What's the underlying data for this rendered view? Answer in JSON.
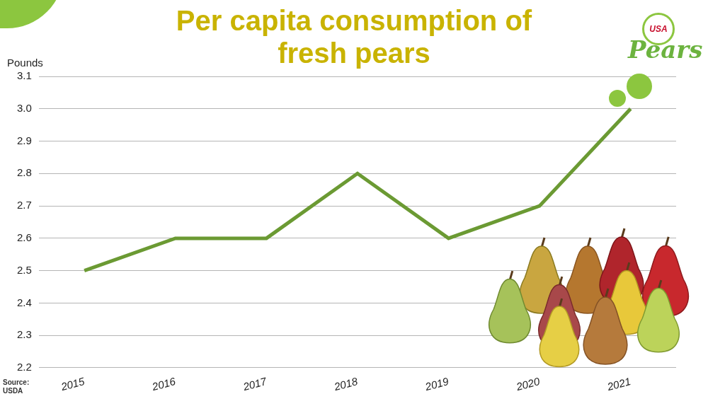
{
  "chart_data": {
    "type": "line",
    "title": "Per capita consumption of fresh pears",
    "y_label": "Pounds",
    "source": "Source: USDA",
    "logo": {
      "badge": "USA",
      "text": "Pears"
    },
    "categories": [
      "2015",
      "2016",
      "2017",
      "2018",
      "2019",
      "2020",
      "2021"
    ],
    "values": [
      2.5,
      2.6,
      2.6,
      2.8,
      2.6,
      2.7,
      3.0
    ],
    "color": "#6b9a33",
    "ylim": [
      2.2,
      3.1
    ],
    "yticks": [
      2.2,
      2.3,
      2.4,
      2.5,
      2.6,
      2.7,
      2.8,
      2.9,
      {
        "value": 3,
        "label": "3.0"
      },
      3.1
    ],
    "grid": true
  }
}
